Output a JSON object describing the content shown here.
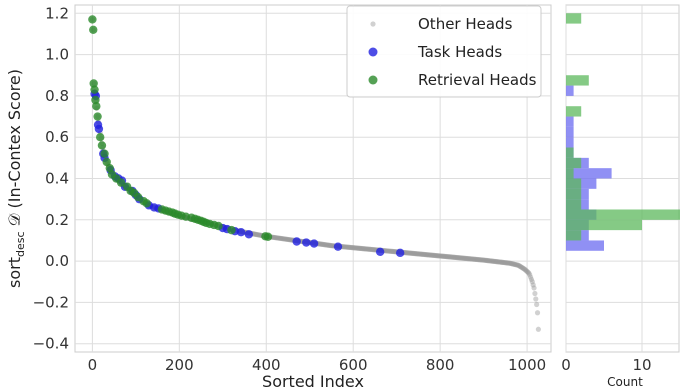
{
  "chart_data": [
    {
      "type": "scatter",
      "xlabel": "Sorted Index",
      "ylabel": "sort",
      "ylabel_sub": "desc",
      "ylabel_rest": " 𝒟 (In-Contex Score)",
      "xlim": [
        -40,
        1055
      ],
      "ylim": [
        -0.44,
        1.24
      ],
      "x_ticks": [
        0,
        200,
        400,
        600,
        800,
        1000
      ],
      "y_ticks": [
        -0.4,
        -0.2,
        0.0,
        0.2,
        0.4,
        0.6,
        0.8,
        1.0,
        1.2
      ],
      "x_tick_labels": [
        "0",
        "200",
        "400",
        "600",
        "800",
        "1000"
      ],
      "y_tick_labels": [
        "−0.4",
        "−0.2",
        "0.0",
        "0.2",
        "0.4",
        "0.6",
        "0.8",
        "1.0",
        "1.2"
      ],
      "grid": true,
      "legend": {
        "placement": "top-right",
        "entries": [
          "Other Heads",
          "Task Heads",
          "Retrieval Heads"
        ]
      },
      "colors": {
        "other": "#999999",
        "task": "#2020e0",
        "retrieval": "#2a8a2a"
      },
      "curve": [
        [
          0,
          1.17
        ],
        [
          2,
          1.12
        ],
        [
          4,
          0.86
        ],
        [
          6,
          0.82
        ],
        [
          8,
          0.78
        ],
        [
          10,
          0.74
        ],
        [
          12,
          0.7
        ],
        [
          15,
          0.66
        ],
        [
          18,
          0.62
        ],
        [
          22,
          0.57
        ],
        [
          26,
          0.53
        ],
        [
          30,
          0.5
        ],
        [
          35,
          0.47
        ],
        [
          40,
          0.45
        ],
        [
          45,
          0.43
        ],
        [
          50,
          0.41
        ],
        [
          60,
          0.39
        ],
        [
          70,
          0.37
        ],
        [
          80,
          0.355
        ],
        [
          90,
          0.34
        ],
        [
          100,
          0.32
        ],
        [
          110,
          0.3
        ],
        [
          120,
          0.285
        ],
        [
          130,
          0.27
        ],
        [
          150,
          0.255
        ],
        [
          175,
          0.235
        ],
        [
          200,
          0.22
        ],
        [
          225,
          0.205
        ],
        [
          250,
          0.195
        ],
        [
          275,
          0.18
        ],
        [
          300,
          0.165
        ],
        [
          325,
          0.15
        ],
        [
          350,
          0.14
        ],
        [
          375,
          0.13
        ],
        [
          400,
          0.12
        ],
        [
          450,
          0.105
        ],
        [
          500,
          0.09
        ],
        [
          550,
          0.075
        ],
        [
          600,
          0.065
        ],
        [
          650,
          0.055
        ],
        [
          700,
          0.045
        ],
        [
          750,
          0.035
        ],
        [
          800,
          0.025
        ],
        [
          850,
          0.015
        ],
        [
          900,
          0.005
        ],
        [
          940,
          -0.005
        ],
        [
          960,
          -0.01
        ],
        [
          980,
          -0.02
        ],
        [
          995,
          -0.04
        ],
        [
          1005,
          -0.06
        ],
        [
          1012,
          -0.1
        ],
        [
          1016,
          -0.13
        ],
        [
          1019,
          -0.17
        ],
        [
          1022,
          -0.21
        ],
        [
          1024,
          -0.25
        ],
        [
          1025,
          -0.29
        ],
        [
          1027,
          -0.37
        ]
      ],
      "task_heads": [
        [
          5,
          0.81
        ],
        [
          8,
          0.8
        ],
        [
          13,
          0.66
        ],
        [
          15,
          0.64
        ],
        [
          25,
          0.52
        ],
        [
          28,
          0.5
        ],
        [
          42,
          0.44
        ],
        [
          52,
          0.41
        ],
        [
          60,
          0.4
        ],
        [
          68,
          0.39
        ],
        [
          75,
          0.36
        ],
        [
          92,
          0.34
        ],
        [
          100,
          0.32
        ],
        [
          108,
          0.3
        ],
        [
          130,
          0.27
        ],
        [
          142,
          0.26
        ],
        [
          152,
          0.255
        ],
        [
          300,
          0.16
        ],
        [
          310,
          0.155
        ],
        [
          328,
          0.145
        ],
        [
          342,
          0.14
        ],
        [
          360,
          0.13
        ],
        [
          470,
          0.095
        ],
        [
          492,
          0.09
        ],
        [
          510,
          0.085
        ],
        [
          565,
          0.07
        ],
        [
          662,
          0.045
        ],
        [
          708,
          0.04
        ]
      ],
      "retrieval_heads": [
        [
          0,
          1.17
        ],
        [
          2,
          1.12
        ],
        [
          3,
          0.86
        ],
        [
          5,
          0.83
        ],
        [
          7,
          0.78
        ],
        [
          9,
          0.75
        ],
        [
          12,
          0.7
        ],
        [
          18,
          0.6
        ],
        [
          22,
          0.56
        ],
        [
          28,
          0.52
        ],
        [
          33,
          0.48
        ],
        [
          40,
          0.45
        ],
        [
          45,
          0.42
        ],
        [
          55,
          0.4
        ],
        [
          66,
          0.38
        ],
        [
          80,
          0.36
        ],
        [
          88,
          0.34
        ],
        [
          96,
          0.33
        ],
        [
          105,
          0.31
        ],
        [
          118,
          0.29
        ],
        [
          125,
          0.28
        ],
        [
          160,
          0.25
        ],
        [
          168,
          0.245
        ],
        [
          176,
          0.24
        ],
        [
          184,
          0.235
        ],
        [
          190,
          0.23
        ],
        [
          197,
          0.225
        ],
        [
          205,
          0.22
        ],
        [
          215,
          0.215
        ],
        [
          228,
          0.21
        ],
        [
          236,
          0.205
        ],
        [
          243,
          0.2
        ],
        [
          250,
          0.195
        ],
        [
          256,
          0.19
        ],
        [
          262,
          0.185
        ],
        [
          270,
          0.18
        ],
        [
          280,
          0.175
        ],
        [
          290,
          0.17
        ],
        [
          320,
          0.15
        ],
        [
          398,
          0.12
        ],
        [
          404,
          0.118
        ]
      ]
    },
    {
      "type": "bar",
      "orientation": "horizontal",
      "xlabel": "Count",
      "xlim": [
        0,
        15
      ],
      "x_ticks": [
        0,
        10
      ],
      "x_tick_labels": [
        "0",
        "10"
      ],
      "grid": true,
      "bin_width": 0.05,
      "series": [
        {
          "color": "#6b6bf0",
          "bins": [
            [
              0.05,
              5
            ],
            [
              0.1,
              3
            ],
            [
              0.15,
              3
            ],
            [
              0.2,
              4
            ],
            [
              0.25,
              3
            ],
            [
              0.3,
              3
            ],
            [
              0.35,
              4
            ],
            [
              0.4,
              6
            ],
            [
              0.45,
              3
            ],
            [
              0.5,
              1
            ],
            [
              0.55,
              1
            ],
            [
              0.6,
              1
            ],
            [
              0.65,
              1
            ],
            [
              0.8,
              1
            ]
          ]
        },
        {
          "color": "#5cb85c",
          "bins": [
            [
              0.1,
              2
            ],
            [
              0.15,
              10
            ],
            [
              0.2,
              15
            ],
            [
              0.25,
              2
            ],
            [
              0.3,
              2
            ],
            [
              0.35,
              2
            ],
            [
              0.4,
              1
            ],
            [
              0.45,
              2
            ],
            [
              0.5,
              1
            ],
            [
              0.7,
              2
            ],
            [
              0.85,
              3
            ],
            [
              1.15,
              2
            ]
          ]
        }
      ]
    }
  ]
}
